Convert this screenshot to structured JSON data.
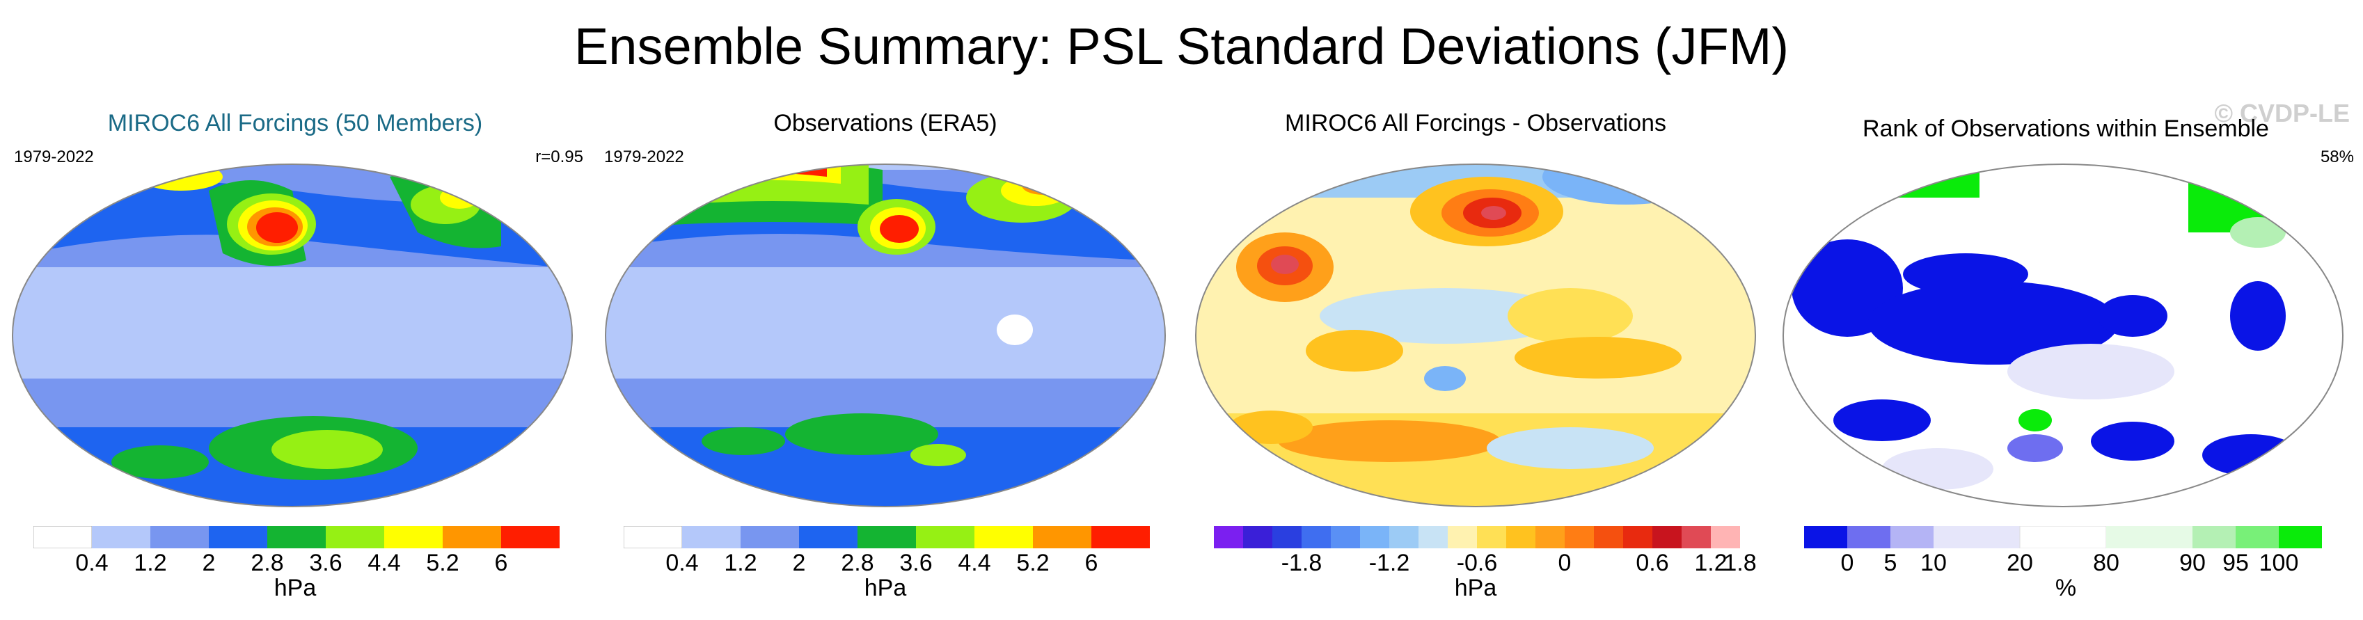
{
  "title": "Ensemble Summary: PSL Standard Deviations (JFM)",
  "watermark": "© CVDP-LE",
  "panels": [
    {
      "title": "MIROC6 All Forcings (50 Members)",
      "left": "1979-2022",
      "right": "r=0.95",
      "unit": "hPa"
    },
    {
      "title": "Observations (ERA5)",
      "left": "1979-2022",
      "right": "",
      "unit": "hPa"
    },
    {
      "title": "MIROC6 All Forcings - Observations",
      "left": "",
      "right": "",
      "unit": "hPa"
    },
    {
      "title": "Rank of Observations within Ensemble",
      "left": "",
      "right": "58%",
      "unit": "%"
    }
  ],
  "chart_data": [
    {
      "type": "heatmap",
      "title": "MIROC6 All Forcings (50 Members)",
      "period": "1979-2022",
      "pattern_correlation": 0.95,
      "units": "hPa",
      "colorbar": {
        "levels": [
          0.4,
          0.8,
          1.2,
          1.6,
          2,
          2.4,
          2.8,
          3.2,
          3.6,
          4,
          4.4,
          4.8,
          5.2,
          5.6,
          6
        ],
        "tick_labels": [
          "0.4",
          "1.2",
          "2",
          "2.8",
          "3.6",
          "4.4",
          "5.2",
          "6"
        ],
        "colors": [
          "#ffffff",
          "#b4c8fa",
          "#7896f0",
          "#1e64f0",
          "#14b432",
          "#96f014",
          "#ffff00",
          "#ff9600",
          "#ff1e00"
        ]
      }
    },
    {
      "type": "heatmap",
      "title": "Observations (ERA5)",
      "period": "1979-2022",
      "units": "hPa",
      "colorbar": {
        "tick_labels": [
          "0.4",
          "1.2",
          "2",
          "2.8",
          "3.6",
          "4.4",
          "5.2",
          "6"
        ],
        "colors": [
          "#ffffff",
          "#b4c8fa",
          "#7896f0",
          "#1e64f0",
          "#14b432",
          "#96f014",
          "#ffff00",
          "#ff9600",
          "#ff1e00"
        ]
      }
    },
    {
      "type": "heatmap",
      "title": "MIROC6 All Forcings - Observations",
      "units": "hPa",
      "colorbar": {
        "tick_labels": [
          "-1.8",
          "-1.2",
          "-0.6",
          "0",
          "0.6",
          "1.2",
          "1.8"
        ],
        "colors": [
          "#7b1ff0",
          "#3a1fd8",
          "#2a3fe0",
          "#3f6ef0",
          "#5a90f5",
          "#7ab4f8",
          "#9ccbf5",
          "#c8e3f5",
          "#fff2b0",
          "#ffe055",
          "#ffc21f",
          "#ffa01a",
          "#ff7d14",
          "#f5500f",
          "#e82a0f",
          "#c8141e",
          "#e04a55",
          "#ffb4b4"
        ]
      }
    },
    {
      "type": "heatmap",
      "title": "Rank of Observations within Ensemble",
      "units": "%",
      "summary_value": "58%",
      "colorbar": {
        "tick_labels": [
          "0",
          "5",
          "10",
          "20",
          "80",
          "90",
          "95",
          "100"
        ],
        "colors": [
          "#0a14e6",
          "#6e6ef0",
          "#b4b4f5",
          "#e6e6fa",
          "#ffffff",
          "#e6fae6",
          "#b4f0b4",
          "#78f078",
          "#0aeb0a"
        ]
      }
    }
  ]
}
